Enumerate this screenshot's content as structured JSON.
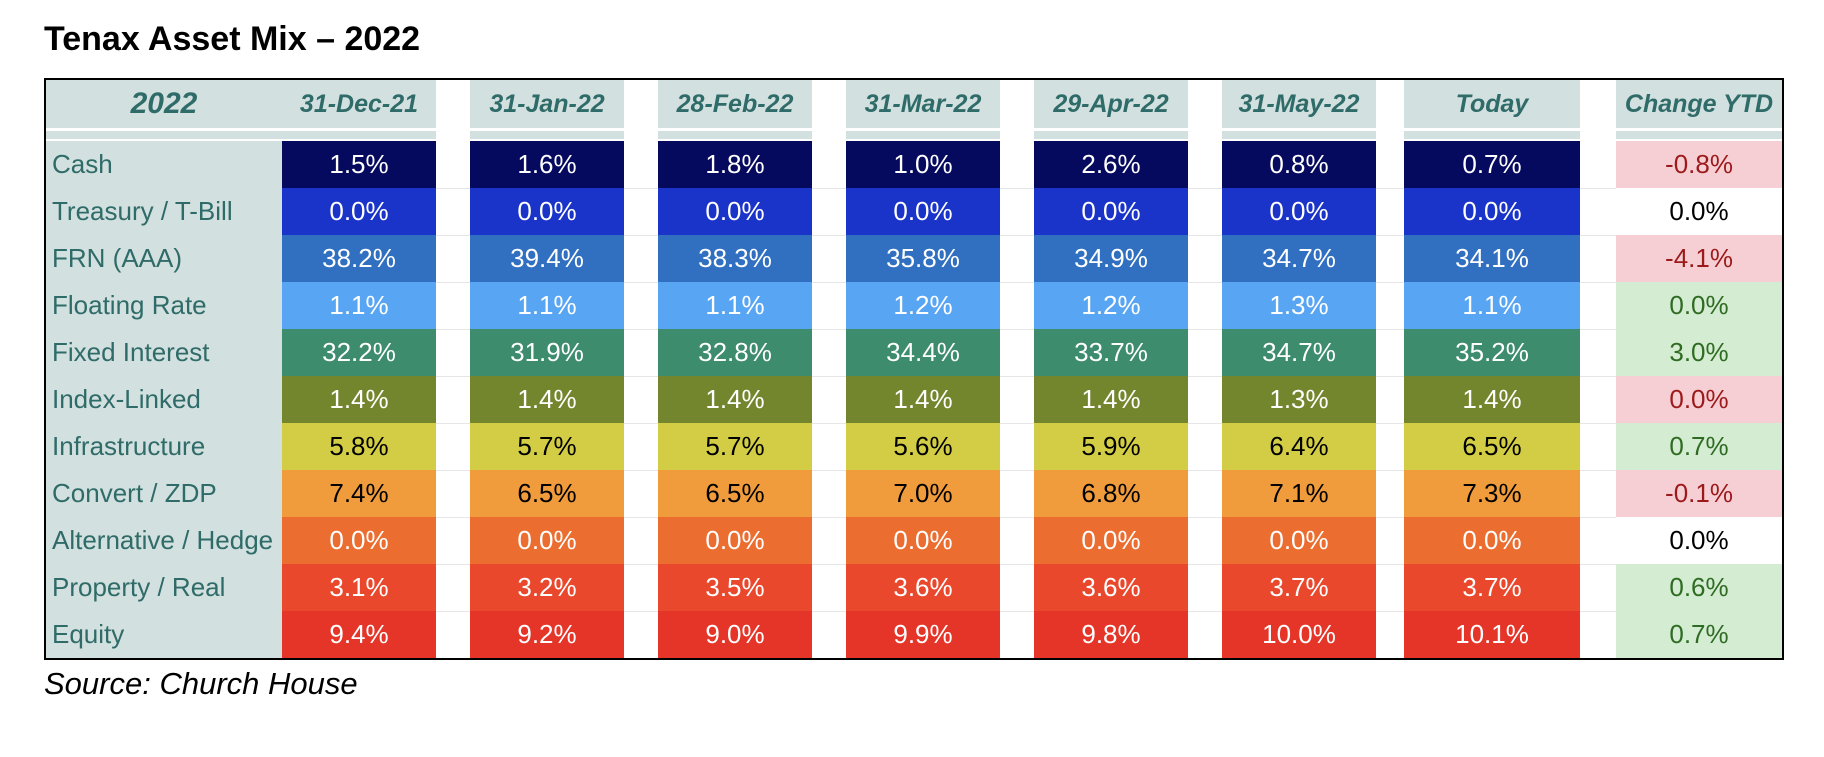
{
  "title": "Tenax Asset Mix – 2022",
  "source": "Source: Church House",
  "chart_data": {
    "type": "table",
    "corner_label": "2022",
    "columns": [
      "31-Dec-21",
      "31-Jan-22",
      "28-Feb-22",
      "31-Mar-22",
      "29-Apr-22",
      "31-May-22",
      "Today"
    ],
    "change_header": "Change YTD",
    "rows": [
      {
        "label": "Cash",
        "color": "#050a5e",
        "text_color": "#ffffff",
        "values": [
          "1.5%",
          "1.6%",
          "1.8%",
          "1.0%",
          "2.6%",
          "0.8%",
          "0.7%"
        ],
        "change": "-0.8%",
        "change_status": "negative"
      },
      {
        "label": "Treasury / T-Bill",
        "color": "#1a33c8",
        "text_color": "#ffffff",
        "values": [
          "0.0%",
          "0.0%",
          "0.0%",
          "0.0%",
          "0.0%",
          "0.0%",
          "0.0%"
        ],
        "change": "0.0%",
        "change_status": "neutral"
      },
      {
        "label": "FRN (AAA)",
        "color": "#3170c0",
        "text_color": "#ffffff",
        "values": [
          "38.2%",
          "39.4%",
          "38.3%",
          "35.8%",
          "34.9%",
          "34.7%",
          "34.1%"
        ],
        "change": "-4.1%",
        "change_status": "negative"
      },
      {
        "label": "Floating Rate",
        "color": "#58a5f3",
        "text_color": "#ffffff",
        "values": [
          "1.1%",
          "1.1%",
          "1.1%",
          "1.2%",
          "1.2%",
          "1.3%",
          "1.1%"
        ],
        "change": "0.0%",
        "change_status": "positive"
      },
      {
        "label": "Fixed Interest",
        "color": "#3d8c6e",
        "text_color": "#ffffff",
        "values": [
          "32.2%",
          "31.9%",
          "32.8%",
          "34.4%",
          "33.7%",
          "34.7%",
          "35.2%"
        ],
        "change": "3.0%",
        "change_status": "positive"
      },
      {
        "label": "Index-Linked",
        "color": "#73862d",
        "text_color": "#ffffff",
        "values": [
          "1.4%",
          "1.4%",
          "1.4%",
          "1.4%",
          "1.4%",
          "1.3%",
          "1.4%"
        ],
        "change": "0.0%",
        "change_status": "negative"
      },
      {
        "label": "Infrastructure",
        "color": "#d2cd44",
        "text_color": "#000000",
        "values": [
          "5.8%",
          "5.7%",
          "5.7%",
          "5.6%",
          "5.9%",
          "6.4%",
          "6.5%"
        ],
        "change": "0.7%",
        "change_status": "positive"
      },
      {
        "label": "Convert / ZDP",
        "color": "#f09c3c",
        "text_color": "#000000",
        "values": [
          "7.4%",
          "6.5%",
          "6.5%",
          "7.0%",
          "6.8%",
          "7.1%",
          "7.3%"
        ],
        "change": "-0.1%",
        "change_status": "negative"
      },
      {
        "label": "Alternative / Hedge",
        "color": "#ec6d30",
        "text_color": "#ffffff",
        "values": [
          "0.0%",
          "0.0%",
          "0.0%",
          "0.0%",
          "0.0%",
          "0.0%",
          "0.0%"
        ],
        "change": "0.0%",
        "change_status": "neutral"
      },
      {
        "label": "Property / Real",
        "color": "#e9482c",
        "text_color": "#ffffff",
        "values": [
          "3.1%",
          "3.2%",
          "3.5%",
          "3.6%",
          "3.6%",
          "3.7%",
          "3.7%"
        ],
        "change": "0.6%",
        "change_status": "positive"
      },
      {
        "label": "Equity",
        "color": "#e53529",
        "text_color": "#ffffff",
        "values": [
          "9.4%",
          "9.2%",
          "9.0%",
          "9.9%",
          "9.8%",
          "10.0%",
          "10.1%"
        ],
        "change": "0.7%",
        "change_status": "positive"
      }
    ]
  },
  "colors": {
    "header_bg": "#d2e0df",
    "header_text": "#2f6b68",
    "label_bg": "#d2e0df",
    "label_text": "#2f6b68",
    "negative_bg": "#f5cfd3",
    "negative_text": "#9c1a1c",
    "positive_bg": "#d3ecd2",
    "positive_text": "#2f6b22",
    "neutral_bg": "#ffffff",
    "neutral_text": "#000000"
  }
}
